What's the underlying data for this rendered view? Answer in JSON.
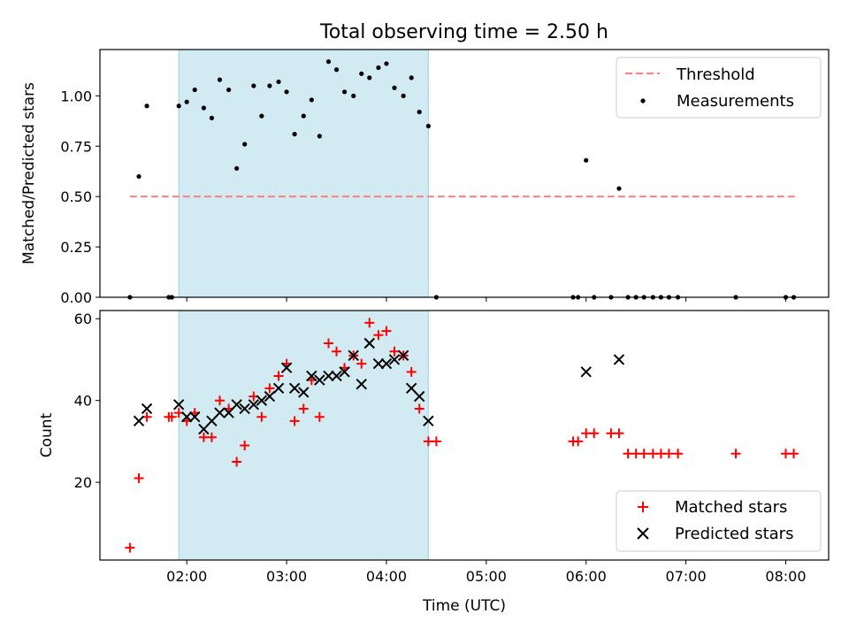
{
  "chart_data": [
    {
      "type": "scatter",
      "title": "Total observing time = 2.50 h",
      "xlabel": "",
      "ylabel": "Matched/Predicted stars",
      "x_unit": "hours UTC",
      "xlim": [
        1.13,
        8.43
      ],
      "ylim": [
        0,
        1.23
      ],
      "yticks": [
        0.0,
        0.25,
        0.5,
        0.75,
        1.0
      ],
      "ytick_labels": [
        "0.00",
        "0.25",
        "0.50",
        "0.75",
        "1.00"
      ],
      "shaded_span": [
        1.92,
        4.42
      ],
      "shade_color": "#add8e6",
      "legend_location": "upper right",
      "threshold": {
        "name": "Threshold",
        "y": 0.5,
        "x_range": [
          1.43,
          8.1
        ],
        "color": "#ff7f7f",
        "style": "dashed"
      },
      "series": [
        {
          "name": "Measurements",
          "marker": "dot",
          "color": "#000000",
          "x": [
            1.43,
            1.52,
            1.6,
            1.82,
            1.85,
            1.92,
            2.0,
            2.08,
            2.17,
            2.25,
            2.33,
            2.42,
            2.5,
            2.58,
            2.67,
            2.75,
            2.83,
            2.92,
            3.0,
            3.08,
            3.17,
            3.25,
            3.33,
            3.42,
            3.5,
            3.58,
            3.67,
            3.75,
            3.83,
            3.92,
            4.0,
            4.08,
            4.17,
            4.25,
            4.33,
            4.42,
            4.5,
            5.87,
            5.92,
            6.0,
            6.08,
            6.25,
            6.33,
            6.42,
            6.5,
            6.58,
            6.67,
            6.75,
            6.83,
            6.92,
            7.5,
            8.0,
            8.08
          ],
          "y": [
            0.0,
            0.6,
            0.95,
            0.0,
            0.0,
            0.95,
            0.97,
            1.03,
            0.94,
            0.89,
            1.08,
            1.03,
            0.64,
            0.76,
            1.05,
            0.9,
            1.05,
            1.07,
            1.02,
            0.81,
            0.9,
            0.98,
            0.8,
            1.17,
            1.13,
            1.02,
            1.0,
            1.11,
            1.09,
            1.14,
            1.16,
            1.04,
            1.0,
            1.09,
            0.92,
            0.85,
            0.0,
            0.0,
            0.0,
            0.68,
            0.0,
            0.0,
            0.54,
            0.0,
            0.0,
            0.0,
            0.0,
            0.0,
            0.0,
            0.0,
            0.0,
            0.0,
            0.0
          ]
        }
      ]
    },
    {
      "type": "scatter",
      "title": "",
      "xlabel": "Time (UTC)",
      "ylabel": "Count",
      "x_unit": "hours UTC",
      "xlim": [
        1.13,
        8.43
      ],
      "ylim": [
        1,
        62
      ],
      "yticks": [
        20,
        40,
        60
      ],
      "ytick_labels": [
        "20",
        "40",
        "60"
      ],
      "xticks": [
        2,
        3,
        4,
        5,
        6,
        7,
        8
      ],
      "xtick_labels": [
        "02:00",
        "03:00",
        "04:00",
        "05:00",
        "06:00",
        "07:00",
        "08:00"
      ],
      "shaded_span": [
        1.92,
        4.42
      ],
      "shade_color": "#add8e6",
      "legend_location": "lower right",
      "series": [
        {
          "name": "Matched stars",
          "marker": "plus",
          "color": "#ff0000",
          "x": [
            1.43,
            1.52,
            1.6,
            1.82,
            1.85,
            1.92,
            2.0,
            2.08,
            2.17,
            2.25,
            2.33,
            2.42,
            2.5,
            2.58,
            2.67,
            2.75,
            2.83,
            2.92,
            3.0,
            3.08,
            3.17,
            3.25,
            3.33,
            3.42,
            3.5,
            3.58,
            3.67,
            3.75,
            3.83,
            3.92,
            4.0,
            4.08,
            4.17,
            4.25,
            4.33,
            4.42,
            4.5,
            5.87,
            5.92,
            6.0,
            6.08,
            6.25,
            6.33,
            6.42,
            6.5,
            6.58,
            6.67,
            6.75,
            6.83,
            6.92,
            7.5,
            8.0,
            8.08
          ],
          "y": [
            4,
            21,
            36,
            36,
            36,
            37,
            35,
            37,
            31,
            31,
            40,
            38,
            25,
            29,
            41,
            36,
            43,
            46,
            49,
            35,
            38,
            45,
            36,
            54,
            52,
            48,
            51,
            49,
            59,
            56,
            57,
            52,
            51,
            47,
            38,
            30,
            30,
            30,
            30,
            32,
            32,
            32,
            32,
            27,
            27,
            27,
            27,
            27,
            27,
            27,
            27,
            27,
            27
          ]
        },
        {
          "name": "Predicted stars",
          "marker": "x",
          "color": "#000000",
          "x": [
            1.52,
            1.6,
            1.92,
            2.0,
            2.08,
            2.17,
            2.25,
            2.33,
            2.42,
            2.5,
            2.58,
            2.67,
            2.75,
            2.83,
            2.92,
            3.0,
            3.08,
            3.17,
            3.25,
            3.33,
            3.42,
            3.5,
            3.58,
            3.67,
            3.75,
            3.83,
            3.92,
            4.0,
            4.08,
            4.17,
            4.25,
            4.33,
            4.42,
            6.0,
            6.33
          ],
          "y": [
            35,
            38,
            39,
            36,
            36,
            33,
            35,
            37,
            37,
            39,
            38,
            39,
            40,
            41,
            43,
            48,
            43,
            42,
            46,
            45,
            46,
            46,
            47,
            51,
            44,
            54,
            49,
            49,
            50,
            51,
            43,
            41,
            35,
            47,
            50
          ]
        }
      ]
    }
  ]
}
